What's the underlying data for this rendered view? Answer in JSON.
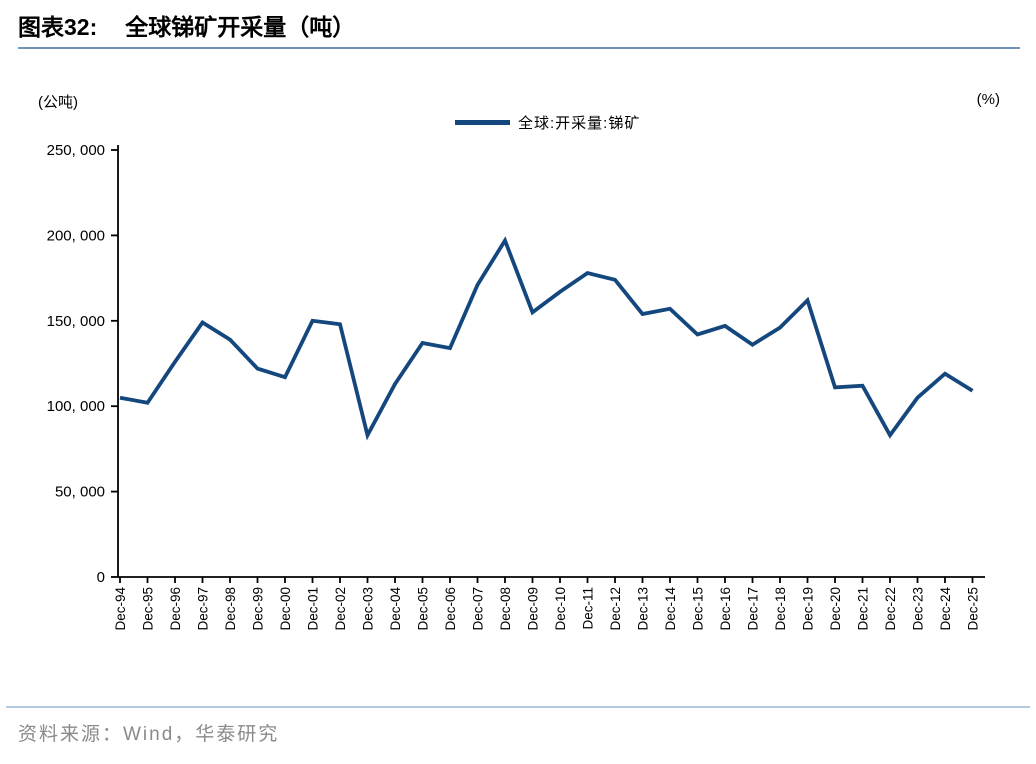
{
  "header": {
    "fig_label": "图表32:",
    "title": "全球锑矿开采量（吨）"
  },
  "left_unit": "(公吨)",
  "right_unit": "(%)",
  "legend": {
    "label": "全球:开采量:锑矿"
  },
  "footer": {
    "source": "资料来源：Wind，华泰研究"
  },
  "colors": {
    "line": "#14477d",
    "axis": "#000000",
    "title_rule": "#7293b8",
    "footer_rule": "#b3c9dd",
    "footer_text": "#8a8a8a"
  },
  "chart_data": {
    "type": "line",
    "title": "全球锑矿开采量（吨）",
    "xlabel": "",
    "ylabel": "(公吨)",
    "y2label": "(%)",
    "grid": false,
    "legend_position": "top-center",
    "ylim": [
      0,
      250000
    ],
    "y_ticks": [
      0,
      50000,
      100000,
      150000,
      200000,
      250000
    ],
    "y_tick_labels": [
      "0",
      "50, 000",
      "100, 000",
      "150, 000",
      "200, 000",
      "250, 000"
    ],
    "categories": [
      "Dec-94",
      "Dec-95",
      "Dec-96",
      "Dec-97",
      "Dec-98",
      "Dec-99",
      "Dec-00",
      "Dec-01",
      "Dec-02",
      "Dec-03",
      "Dec-04",
      "Dec-05",
      "Dec-06",
      "Dec-07",
      "Dec-08",
      "Dec-09",
      "Dec-10",
      "Dec-11",
      "Dec-12",
      "Dec-13",
      "Dec-14",
      "Dec-15",
      "Dec-16",
      "Dec-17",
      "Dec-18",
      "Dec-19",
      "Dec-20",
      "Dec-21",
      "Dec-22",
      "Dec-23",
      "Dec-24",
      "Dec-25"
    ],
    "series": [
      {
        "name": "全球:开采量:锑矿",
        "values": [
          105000,
          102000,
          126000,
          149000,
          139000,
          122000,
          117000,
          150000,
          148000,
          83000,
          113000,
          137000,
          134000,
          171000,
          197000,
          155000,
          167000,
          178000,
          174000,
          154000,
          157000,
          142000,
          147000,
          136000,
          146000,
          162000,
          111000,
          112000,
          83000,
          105000,
          119000,
          109000
        ]
      }
    ]
  }
}
